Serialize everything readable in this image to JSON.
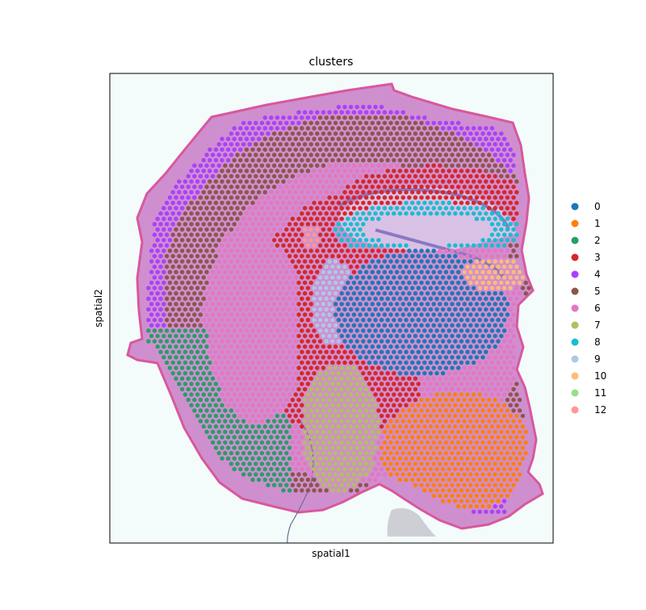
{
  "chart_data": {
    "type": "scatter",
    "title": "clusters",
    "xlabel": "spatial1",
    "ylabel": "spatial2",
    "xticks": [],
    "yticks": [],
    "grid": false,
    "legend_position": "right",
    "background": "tissue H&E image",
    "tissue_colors": {
      "tissue": "#cf8fcf",
      "tissue_light": "#e2b6de",
      "edge": "#d8589c",
      "hippocampus": "#8a78c4",
      "hippocampus_fill": "#d9c1e6",
      "frame_bg": "#f4fbfb"
    },
    "clusters": [
      {
        "label": "0",
        "color": "#1f77b4"
      },
      {
        "label": "1",
        "color": "#ff7f0e"
      },
      {
        "label": "2",
        "color": "#279e68"
      },
      {
        "label": "3",
        "color": "#d62728"
      },
      {
        "label": "4",
        "color": "#aa40fc"
      },
      {
        "label": "5",
        "color": "#8c564b"
      },
      {
        "label": "6",
        "color": "#e377c2"
      },
      {
        "label": "7",
        "color": "#b5bd61"
      },
      {
        "label": "8",
        "color": "#17becf"
      },
      {
        "label": "9",
        "color": "#aec7e8"
      },
      {
        "label": "10",
        "color": "#ffbb78"
      },
      {
        "label": "11",
        "color": "#98df8a"
      },
      {
        "label": "12",
        "color": "#ff9896"
      }
    ]
  }
}
